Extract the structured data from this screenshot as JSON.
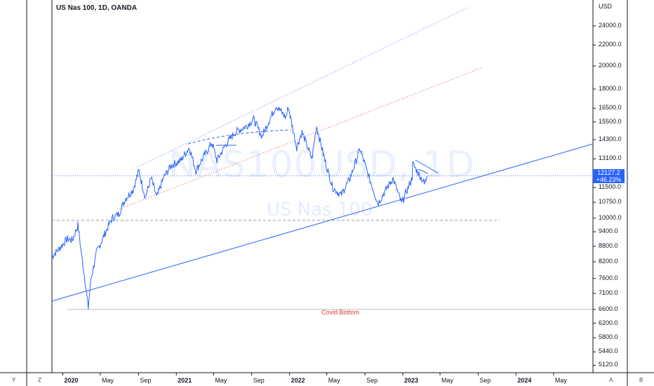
{
  "header": {
    "title": "US Nas 100, 1D, OANDA",
    "currency": "USD"
  },
  "watermark": {
    "symbol": "NAS100USD, 1D",
    "name": "US Nas 100"
  },
  "price_tag": {
    "price": "12127.2",
    "change": "+46.23%"
  },
  "annotation": "Covid Bottom",
  "corner_buttons": {
    "left_y": "Y",
    "left_z": "Z",
    "right_a": "A",
    "right_b": "B"
  },
  "colors": {
    "series": "#2962ff",
    "trend_line": "#2962ff",
    "upper_channel": "#7b9cf0",
    "lower_channel": "#e57373",
    "annotation": "#e53935",
    "dashed_gray": "#9598a1",
    "axis_line": "#131722"
  },
  "chart_data": {
    "type": "line",
    "title": "US Nas 100, 1D, OANDA",
    "xlabel": "",
    "ylabel": "",
    "y_scale": "log",
    "ylim": [
      4950,
      27000
    ],
    "xlim": [
      "2019-11-27",
      "2024-09-05"
    ],
    "x_ticks": [
      {
        "date": "2020-01-01",
        "label": "2020",
        "bold": true
      },
      {
        "date": "2020-05-01",
        "label": "May",
        "bold": false
      },
      {
        "date": "2020-09-01",
        "label": "Sep",
        "bold": false
      },
      {
        "date": "2021-01-01",
        "label": "2021",
        "bold": true
      },
      {
        "date": "2021-05-01",
        "label": "May",
        "bold": false
      },
      {
        "date": "2021-09-01",
        "label": "Sep",
        "bold": false
      },
      {
        "date": "2022-01-01",
        "label": "2022",
        "bold": true
      },
      {
        "date": "2022-05-01",
        "label": "May",
        "bold": false
      },
      {
        "date": "2022-09-01",
        "label": "Sep",
        "bold": false
      },
      {
        "date": "2023-01-01",
        "label": "2023",
        "bold": true
      },
      {
        "date": "2023-05-01",
        "label": "May",
        "bold": false
      },
      {
        "date": "2023-09-01",
        "label": "Sep",
        "bold": false
      },
      {
        "date": "2024-01-01",
        "label": "2024",
        "bold": true
      },
      {
        "date": "2024-05-01",
        "label": "May",
        "bold": false
      }
    ],
    "y_ticks": [
      {
        "value": 24000,
        "label": "24000.0"
      },
      {
        "value": 22000,
        "label": "22000.0"
      },
      {
        "value": 20000,
        "label": "20000.0"
      },
      {
        "value": 18000,
        "label": "18000.0"
      },
      {
        "value": 16500,
        "label": "16500.0"
      },
      {
        "value": 15500,
        "label": "15500.0"
      },
      {
        "value": 14300,
        "label": "14300.0"
      },
      {
        "value": 13100,
        "label": "13100.0"
      },
      {
        "value": 11500,
        "label": "11500.0"
      },
      {
        "value": 10750,
        "label": "10750.0"
      },
      {
        "value": 10000,
        "label": "10000.0"
      },
      {
        "value": 9400,
        "label": "9400.0"
      },
      {
        "value": 8800,
        "label": "8800.0"
      },
      {
        "value": 8200,
        "label": "8200.0"
      },
      {
        "value": 7600,
        "label": "7600.0"
      },
      {
        "value": 7100,
        "label": "7100.0"
      },
      {
        "value": 6600,
        "label": "6600.0"
      },
      {
        "value": 6200,
        "label": "6200.0"
      },
      {
        "value": 5800,
        "label": "5800.0"
      },
      {
        "value": 5440,
        "label": "5440.0"
      },
      {
        "value": 5120,
        "label": "5120.0"
      }
    ],
    "series": [
      {
        "points": [
          [
            "2019-11-27",
            8400
          ],
          [
            "2019-12-20",
            8700
          ],
          [
            "2020-01-15",
            9100
          ],
          [
            "2020-02-01",
            9050
          ],
          [
            "2020-02-19",
            9700
          ],
          [
            "2020-03-01",
            8500
          ],
          [
            "2020-03-12",
            7600
          ],
          [
            "2020-03-23",
            6650
          ],
          [
            "2020-04-01",
            7600
          ],
          [
            "2020-04-20",
            8600
          ],
          [
            "2020-05-15",
            9300
          ],
          [
            "2020-06-08",
            10000
          ],
          [
            "2020-06-30",
            10200
          ],
          [
            "2020-07-20",
            10900
          ],
          [
            "2020-08-15",
            11400
          ],
          [
            "2020-09-02",
            12400
          ],
          [
            "2020-09-23",
            11000
          ],
          [
            "2020-10-12",
            12000
          ],
          [
            "2020-10-30",
            11000
          ],
          [
            "2020-11-20",
            12000
          ],
          [
            "2020-12-15",
            12700
          ],
          [
            "2021-01-15",
            13000
          ],
          [
            "2021-02-12",
            13800
          ],
          [
            "2021-03-05",
            12400
          ],
          [
            "2021-04-01",
            13300
          ],
          [
            "2021-04-26",
            14100
          ],
          [
            "2021-05-12",
            13000
          ],
          [
            "2021-06-10",
            14000
          ],
          [
            "2021-07-10",
            14800
          ],
          [
            "2021-08-15",
            15200
          ],
          [
            "2021-09-07",
            15700
          ],
          [
            "2021-10-04",
            14500
          ],
          [
            "2021-10-25",
            15500
          ],
          [
            "2021-11-19",
            16700
          ],
          [
            "2021-12-20",
            15800
          ],
          [
            "2021-12-28",
            16600
          ],
          [
            "2022-01-24",
            13800
          ],
          [
            "2022-02-10",
            14800
          ],
          [
            "2022-03-14",
            13100
          ],
          [
            "2022-03-29",
            15200
          ],
          [
            "2022-04-25",
            13000
          ],
          [
            "2022-05-20",
            11500
          ],
          [
            "2022-06-16",
            11100
          ],
          [
            "2022-07-15",
            12000
          ],
          [
            "2022-08-16",
            13700
          ],
          [
            "2022-09-15",
            12000
          ],
          [
            "2022-10-13",
            10700
          ],
          [
            "2022-11-30",
            12000
          ],
          [
            "2022-12-28",
            10700
          ],
          [
            "2023-01-31",
            12000
          ],
          [
            "2023-02-02",
            12800
          ],
          [
            "2023-03-13",
            11700
          ],
          [
            "2023-03-20",
            12127
          ]
        ]
      }
    ],
    "reference_lines": [
      {
        "value": 9900
      },
      {
        "value": 6600
      }
    ]
  }
}
